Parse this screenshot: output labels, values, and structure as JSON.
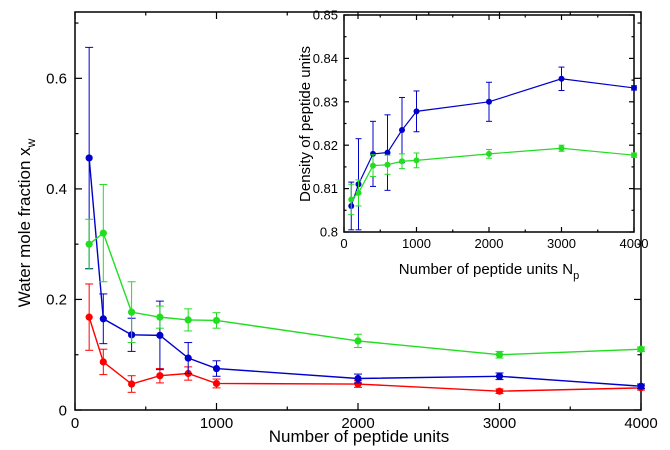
{
  "chart_data": [
    {
      "type": "line",
      "xlabel": "Number of peptide units",
      "ylabel_main": "Water mole fraction x",
      "ylabel_sub": "w",
      "xlim": [
        0,
        4000
      ],
      "ylim": [
        0,
        0.72
      ],
      "xticks": [
        0,
        1000,
        2000,
        3000,
        4000
      ],
      "yticks": [
        0,
        0.2,
        0.4,
        0.6
      ],
      "xtick_labels": [
        "0",
        "1000",
        "2000",
        "3000",
        "4000"
      ],
      "ytick_labels": [
        "0",
        "0.2",
        "0.4",
        "0.6"
      ],
      "grid": false,
      "series": [
        {
          "color": "#ff0000",
          "x": [
            100,
            200,
            400,
            600,
            800,
            1000,
            2000,
            3000,
            4000
          ],
          "y": [
            0.168,
            0.087,
            0.047,
            0.062,
            0.066,
            0.048,
            0.047,
            0.034,
            0.04
          ],
          "err": [
            0.06,
            0.023,
            0.015,
            0.013,
            0.012,
            0.008,
            0.006,
            0.004,
            0.004
          ]
        },
        {
          "color": "#0000cc",
          "x": [
            100,
            200,
            400,
            600,
            800,
            1000,
            2000,
            3000,
            4000
          ],
          "y": [
            0.456,
            0.165,
            0.136,
            0.135,
            0.094,
            0.075,
            0.057,
            0.061,
            0.043
          ],
          "err": [
            0.2,
            0.045,
            0.03,
            0.062,
            0.028,
            0.014,
            0.008,
            0.006,
            0.004
          ]
        },
        {
          "color": "#22dd22",
          "x": [
            100,
            200,
            400,
            600,
            800,
            1000,
            2000,
            3000,
            4000
          ],
          "y": [
            0.3,
            0.32,
            0.177,
            0.168,
            0.163,
            0.162,
            0.125,
            0.1,
            0.11
          ],
          "err": [
            0.045,
            0.088,
            0.055,
            0.02,
            0.02,
            0.014,
            0.012,
            0.006,
            0.004
          ]
        }
      ]
    },
    {
      "type": "line",
      "inset": true,
      "xlabel_main": "Number of peptide units N",
      "xlabel_sub": "p",
      "ylabel": "Density of peptide units",
      "xlim": [
        0,
        4000
      ],
      "ylim": [
        0.8,
        0.85
      ],
      "xticks": [
        0,
        1000,
        2000,
        3000,
        4000
      ],
      "yticks": [
        0.8,
        0.81,
        0.82,
        0.83,
        0.84,
        0.85
      ],
      "xtick_labels": [
        "0",
        "1000",
        "2000",
        "3000",
        "4000"
      ],
      "ytick_labels": [
        "0.8",
        "0.81",
        "0.82",
        "0.83",
        "0.84",
        "0.85"
      ],
      "grid": false,
      "series": [
        {
          "color": "#0000cc",
          "x": [
            100,
            200,
            400,
            600,
            800,
            1000,
            2000,
            3000,
            4000
          ],
          "y": [
            0.806,
            0.811,
            0.818,
            0.8183,
            0.8235,
            0.8278,
            0.83,
            0.8353,
            0.8332
          ],
          "err": [
            0.0055,
            0.0105,
            0.0075,
            0.0087,
            0.0075,
            0.0047,
            0.0045,
            0.0027,
            0.0005
          ]
        },
        {
          "color": "#22dd22",
          "x": [
            100,
            200,
            400,
            600,
            800,
            1000,
            2000,
            3000,
            4000
          ],
          "y": [
            0.8075,
            0.809,
            0.8153,
            0.8155,
            0.8163,
            0.8165,
            0.818,
            0.8193,
            0.8177
          ],
          "err": [
            0.0035,
            0.003,
            0.0025,
            0.0022,
            0.0017,
            0.0017,
            0.001,
            0.0007,
            0.0005
          ]
        }
      ]
    }
  ]
}
